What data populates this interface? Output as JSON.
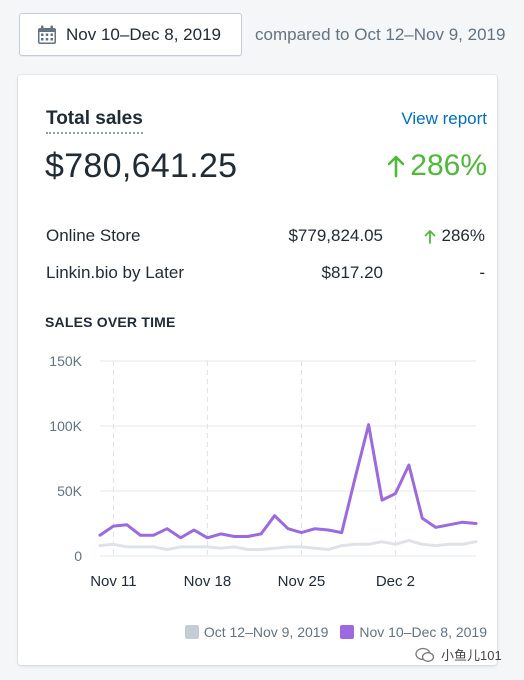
{
  "date_range": {
    "label": "Nov 10–Dec 8, 2019",
    "icon": "calendar-icon",
    "comparison": "compared to Oct 12–Nov 9, 2019"
  },
  "card": {
    "title": "Total sales",
    "view_report": "View report",
    "total": "$780,641.25",
    "total_change": "286%",
    "rows": [
      {
        "name": "Online Store",
        "value": "$779,824.05",
        "change": "286%"
      },
      {
        "name": "Linkin.bio by Later",
        "value": "$817.20",
        "change": "-"
      }
    ],
    "section_title": "SALES OVER TIME"
  },
  "colors": {
    "current": "#9c6ade",
    "previous": "#dfe3e8",
    "positive": "#50b83c",
    "link": "#006fbb"
  },
  "chart_data": {
    "type": "line",
    "x_tick_labels": [
      "Nov 11",
      "Nov 18",
      "Nov 25",
      "Dec 2"
    ],
    "y_tick_labels": [
      "150K",
      "100K",
      "50K",
      "0"
    ],
    "ylim": [
      0,
      150000
    ],
    "grid": true,
    "legend_position": "bottom-right",
    "series": [
      {
        "name": "Oct 12–Nov 9, 2019",
        "color": "#dfe3e8",
        "values": [
          8000,
          9000,
          7000,
          7000,
          7000,
          5000,
          7000,
          7000,
          7000,
          6000,
          7000,
          5000,
          5000,
          6000,
          7000,
          7000,
          6000,
          5000,
          8000,
          9000,
          9000,
          11000,
          9000,
          12000,
          9000,
          8000,
          9000,
          9000,
          11000
        ]
      },
      {
        "name": "Nov 10–Dec 8, 2019",
        "color": "#9c6ade",
        "values": [
          16000,
          23000,
          24000,
          16000,
          16000,
          21000,
          14000,
          20000,
          14000,
          17000,
          15000,
          15000,
          17000,
          31000,
          21000,
          18000,
          21000,
          20000,
          18000,
          60000,
          101000,
          43000,
          48000,
          70000,
          29000,
          22000,
          24000,
          26000,
          25000
        ]
      }
    ]
  },
  "watermark": "小鱼儿101"
}
